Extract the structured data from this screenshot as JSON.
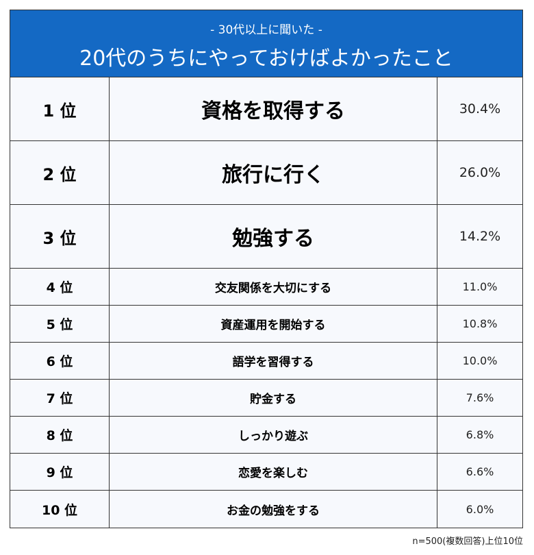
{
  "header": {
    "subtitle": "- 30代以上に聞いた -",
    "title": "20代のうちにやっておけばよかったこと"
  },
  "rows": [
    {
      "rank": "1 位",
      "item": "資格を取得する",
      "pct": "30.4%"
    },
    {
      "rank": "2 位",
      "item": "旅行に行く",
      "pct": "26.0%"
    },
    {
      "rank": "3 位",
      "item": "勉強する",
      "pct": "14.2%"
    },
    {
      "rank": "4 位",
      "item": "交友関係を大切にする",
      "pct": "11.0%"
    },
    {
      "rank": "5 位",
      "item": "資産運用を開始する",
      "pct": "10.8%"
    },
    {
      "rank": "6 位",
      "item": "語学を習得する",
      "pct": "10.0%"
    },
    {
      "rank": "7 位",
      "item": "貯金する",
      "pct": "7.6%"
    },
    {
      "rank": "8 位",
      "item": "しっかり遊ぶ",
      "pct": "6.8%"
    },
    {
      "rank": "9 位",
      "item": "恋愛を楽しむ",
      "pct": "6.6%"
    },
    {
      "rank": "10 位",
      "item": "お金の勉強をする",
      "pct": "6.0%"
    }
  ],
  "note": "n=500(複数回答)上位10位",
  "colors": {
    "header": "#1469c4"
  }
}
